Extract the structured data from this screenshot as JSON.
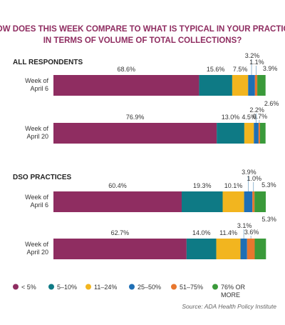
{
  "chart_data": {
    "type": "bar",
    "stacked": true,
    "orientation": "horizontal",
    "title": "HOW DOES THIS WEEK COMPARE TO WHAT IS TYPICAL IN YOUR PRACTICE IN TERMS OF VOLUME OF TOTAL COLLECTIONS?",
    "source": "Source: ADA Health Policy Institute",
    "xlim": [
      0,
      100
    ],
    "grid": false,
    "legend_position": "bottom",
    "categories": [
      "< 5%",
      "5–10%",
      "11–24%",
      "25–50%",
      "51–75%",
      "76% OR MORE"
    ],
    "colors": [
      "#8f2d61",
      "#0e7a85",
      "#f2b51f",
      "#1f6fb5",
      "#e8772e",
      "#3a9a3a"
    ],
    "groups": [
      {
        "label": "ALL RESPONDENTS",
        "rows": [
          {
            "label": [
              "Week of",
              "April 6"
            ],
            "values": [
              68.6,
              15.6,
              7.5,
              3.2,
              1.1,
              3.9
            ],
            "value_labels": [
              "68.6%",
              "15.6%",
              "7.5%",
              "3.2%",
              "1.1%",
              "3.9%"
            ]
          },
          {
            "label": [
              "Week of",
              "April 20"
            ],
            "values": [
              76.9,
              13.0,
              4.5,
              2.2,
              0.7,
              2.6
            ],
            "value_labels": [
              "76.9%",
              "13.0%",
              "4.5%",
              "2.2%",
              "0.7%",
              "2.6%"
            ]
          }
        ]
      },
      {
        "label": "DSO PRACTICES",
        "rows": [
          {
            "label": [
              "Week of",
              "April 6"
            ],
            "values": [
              60.4,
              19.3,
              10.1,
              3.9,
              1.0,
              5.3
            ],
            "value_labels": [
              "60.4%",
              "19.3%",
              "10.1%",
              "3.9%",
              "1.0%",
              "5.3%"
            ]
          },
          {
            "label": [
              "Week of",
              "April 20"
            ],
            "values": [
              62.7,
              14.0,
              11.4,
              3.1,
              3.6,
              5.3
            ],
            "value_labels": [
              "62.7%",
              "14.0%",
              "11.4%",
              "3.1%",
              "3.6%",
              "5.3%"
            ]
          }
        ]
      }
    ],
    "legend": [
      {
        "label": [
          "< 5%"
        ]
      },
      {
        "label": [
          "5–10%"
        ]
      },
      {
        "label": [
          "11–24%"
        ]
      },
      {
        "label": [
          "25–50%"
        ]
      },
      {
        "label": [
          "51–75%"
        ]
      },
      {
        "label": [
          "76% OR",
          "MORE"
        ]
      }
    ]
  }
}
